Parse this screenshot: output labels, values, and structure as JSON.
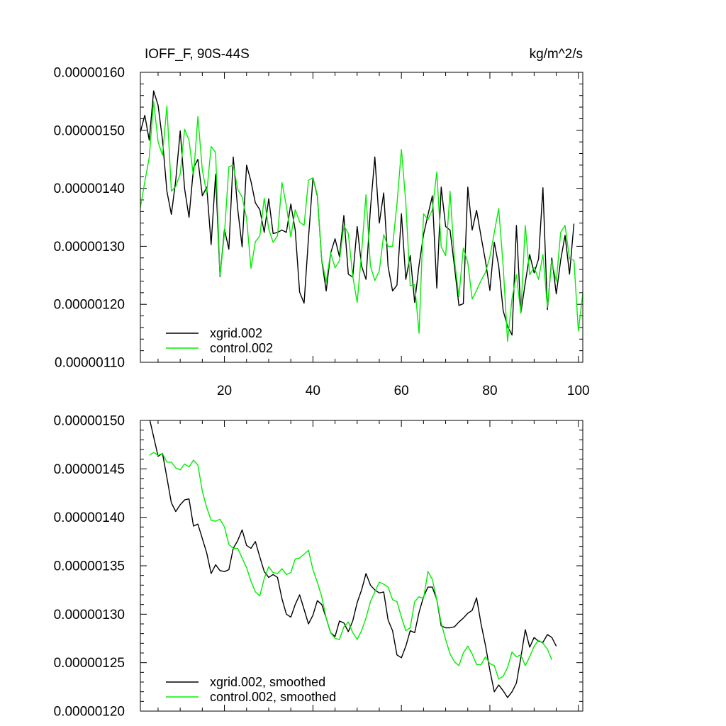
{
  "chart_data": [
    {
      "type": "line",
      "title": "IOFF_F, 90S-44S",
      "units": "kg/m^2/s",
      "xlim": [
        1,
        101
      ],
      "ylim": [
        1.1e-06,
        1.6e-06
      ],
      "xticks": [
        20,
        40,
        60,
        80,
        100
      ],
      "xtick_labels": [
        "20",
        "40",
        "60",
        "80",
        "100"
      ],
      "yticks": [
        1.1e-06,
        1.2e-06,
        1.3e-06,
        1.4e-06,
        1.5e-06,
        1.6e-06
      ],
      "ytick_labels": [
        "0.00000110",
        "0.00000120",
        "0.00000130",
        "0.00000140",
        "0.00000150",
        "0.00000160"
      ],
      "legend_position": "bottom-left",
      "series": [
        {
          "name": "xgrid.002",
          "color": "#000000",
          "x_start": 1,
          "values": [
            1.497,
            1.526,
            1.483,
            1.568,
            1.543,
            1.483,
            1.395,
            1.355,
            1.414,
            1.499,
            1.399,
            1.35,
            1.435,
            1.45,
            1.387,
            1.402,
            1.303,
            1.424,
            1.248,
            1.329,
            1.295,
            1.454,
            1.364,
            1.299,
            1.44,
            1.412,
            1.375,
            1.363,
            1.324,
            1.382,
            1.322,
            1.324,
            1.328,
            1.324,
            1.373,
            1.328,
            1.221,
            1.202,
            1.314,
            1.418,
            1.387,
            1.276,
            1.223,
            1.288,
            1.313,
            1.282,
            1.353,
            1.252,
            1.247,
            1.334,
            1.266,
            1.243,
            1.365,
            1.454,
            1.34,
            1.392,
            1.265,
            1.223,
            1.233,
            1.356,
            1.243,
            1.284,
            1.203,
            1.268,
            1.32,
            1.354,
            1.387,
            1.228,
            1.402,
            1.334,
            1.328,
            1.265,
            1.198,
            1.201,
            1.402,
            1.328,
            1.362,
            1.317,
            1.275,
            1.224,
            1.307,
            1.266,
            1.189,
            1.162,
            1.147,
            1.336,
            1.185,
            1.237,
            1.286,
            1.254,
            1.278,
            1.401,
            1.191,
            1.28,
            1.218,
            1.276,
            1.319,
            1.252,
            1.339
          ]
        },
        {
          "name": "control.002",
          "color": "#00ee00",
          "x_start": 1,
          "values": [
            1.367,
            1.411,
            1.453,
            1.55,
            1.48,
            1.457,
            1.542,
            1.395,
            1.403,
            1.425,
            1.502,
            1.483,
            1.42,
            1.524,
            1.431,
            1.392,
            1.472,
            1.462,
            1.25,
            1.322,
            1.437,
            1.44,
            1.398,
            1.385,
            1.348,
            1.262,
            1.308,
            1.318,
            1.383,
            1.33,
            1.307,
            1.318,
            1.41,
            1.37,
            1.316,
            1.363,
            1.342,
            1.336,
            1.414,
            1.418,
            1.389,
            1.277,
            1.238,
            1.289,
            1.263,
            1.275,
            1.336,
            1.322,
            1.249,
            1.203,
            1.289,
            1.389,
            1.266,
            1.241,
            1.258,
            1.32,
            1.3,
            1.3,
            1.373,
            1.467,
            1.375,
            1.232,
            1.234,
            1.15,
            1.356,
            1.346,
            1.363,
            1.428,
            1.299,
            1.284,
            1.395,
            1.276,
            1.213,
            1.297,
            1.272,
            1.209,
            1.224,
            1.241,
            1.255,
            1.282,
            1.324,
            1.365,
            1.266,
            1.136,
            1.21,
            1.251,
            1.185,
            1.336,
            1.251,
            1.264,
            1.243,
            1.286,
            1.195,
            1.275,
            1.239,
            1.324,
            1.336,
            1.278,
            1.276,
            1.154,
            1.219
          ]
        }
      ]
    },
    {
      "type": "line",
      "xlim": [
        1,
        101
      ],
      "ylim": [
        1.2e-06,
        1.5e-06
      ],
      "yticks": [
        1.2e-06,
        1.25e-06,
        1.3e-06,
        1.35e-06,
        1.4e-06,
        1.45e-06,
        1.5e-06
      ],
      "ytick_labels": [
        "0.00000120",
        "0.00000125",
        "0.00000130",
        "0.00000135",
        "0.00000140",
        "0.00000145",
        "0.00000150"
      ],
      "legend_position": "bottom-left",
      "series": [
        {
          "name": "xgrid.002, smoothed",
          "color": "#000000",
          "x_start": 3,
          "values": [
            1.503,
            1.483,
            1.463,
            1.466,
            1.441,
            1.415,
            1.406,
            1.413,
            1.418,
            1.419,
            1.391,
            1.393,
            1.378,
            1.363,
            1.342,
            1.351,
            1.345,
            1.344,
            1.346,
            1.368,
            1.376,
            1.387,
            1.371,
            1.368,
            1.375,
            1.359,
            1.344,
            1.338,
            1.341,
            1.338,
            1.316,
            1.3,
            1.297,
            1.31,
            1.32,
            1.305,
            1.29,
            1.299,
            1.314,
            1.31,
            1.296,
            1.281,
            1.277,
            1.293,
            1.291,
            1.282,
            1.293,
            1.312,
            1.325,
            1.342,
            1.33,
            1.325,
            1.322,
            1.323,
            1.294,
            1.283,
            1.258,
            1.255,
            1.267,
            1.283,
            1.281,
            1.302,
            1.318,
            1.328,
            1.328,
            1.315,
            1.288,
            1.286,
            1.286,
            1.287,
            1.292,
            1.296,
            1.301,
            1.304,
            1.317,
            1.29,
            1.268,
            1.242,
            1.22,
            1.227,
            1.221,
            1.214,
            1.22,
            1.229,
            1.255,
            1.284,
            1.266,
            1.276,
            1.272,
            1.271,
            1.279,
            1.276,
            1.267
          ]
        },
        {
          "name": "control.002, smoothed",
          "color": "#00ee00",
          "x_start": 3,
          "values": [
            1.464,
            1.467,
            1.464,
            1.466,
            1.457,
            1.457,
            1.451,
            1.449,
            1.455,
            1.452,
            1.459,
            1.454,
            1.427,
            1.41,
            1.397,
            1.396,
            1.398,
            1.39,
            1.372,
            1.368,
            1.368,
            1.358,
            1.348,
            1.334,
            1.323,
            1.319,
            1.337,
            1.349,
            1.343,
            1.342,
            1.347,
            1.341,
            1.343,
            1.357,
            1.358,
            1.362,
            1.366,
            1.346,
            1.333,
            1.318,
            1.296,
            1.281,
            1.275,
            1.274,
            1.287,
            1.292,
            1.281,
            1.274,
            1.283,
            1.296,
            1.313,
            1.323,
            1.333,
            1.331,
            1.328,
            1.315,
            1.313,
            1.297,
            1.283,
            1.286,
            1.313,
            1.318,
            1.316,
            1.344,
            1.336,
            1.315,
            1.291,
            1.274,
            1.259,
            1.251,
            1.247,
            1.26,
            1.267,
            1.259,
            1.248,
            1.248,
            1.256,
            1.249,
            1.247,
            1.233,
            1.236,
            1.245,
            1.261,
            1.256,
            1.258,
            1.247,
            1.256,
            1.267,
            1.273,
            1.27,
            1.264,
            1.253
          ]
        }
      ]
    }
  ]
}
